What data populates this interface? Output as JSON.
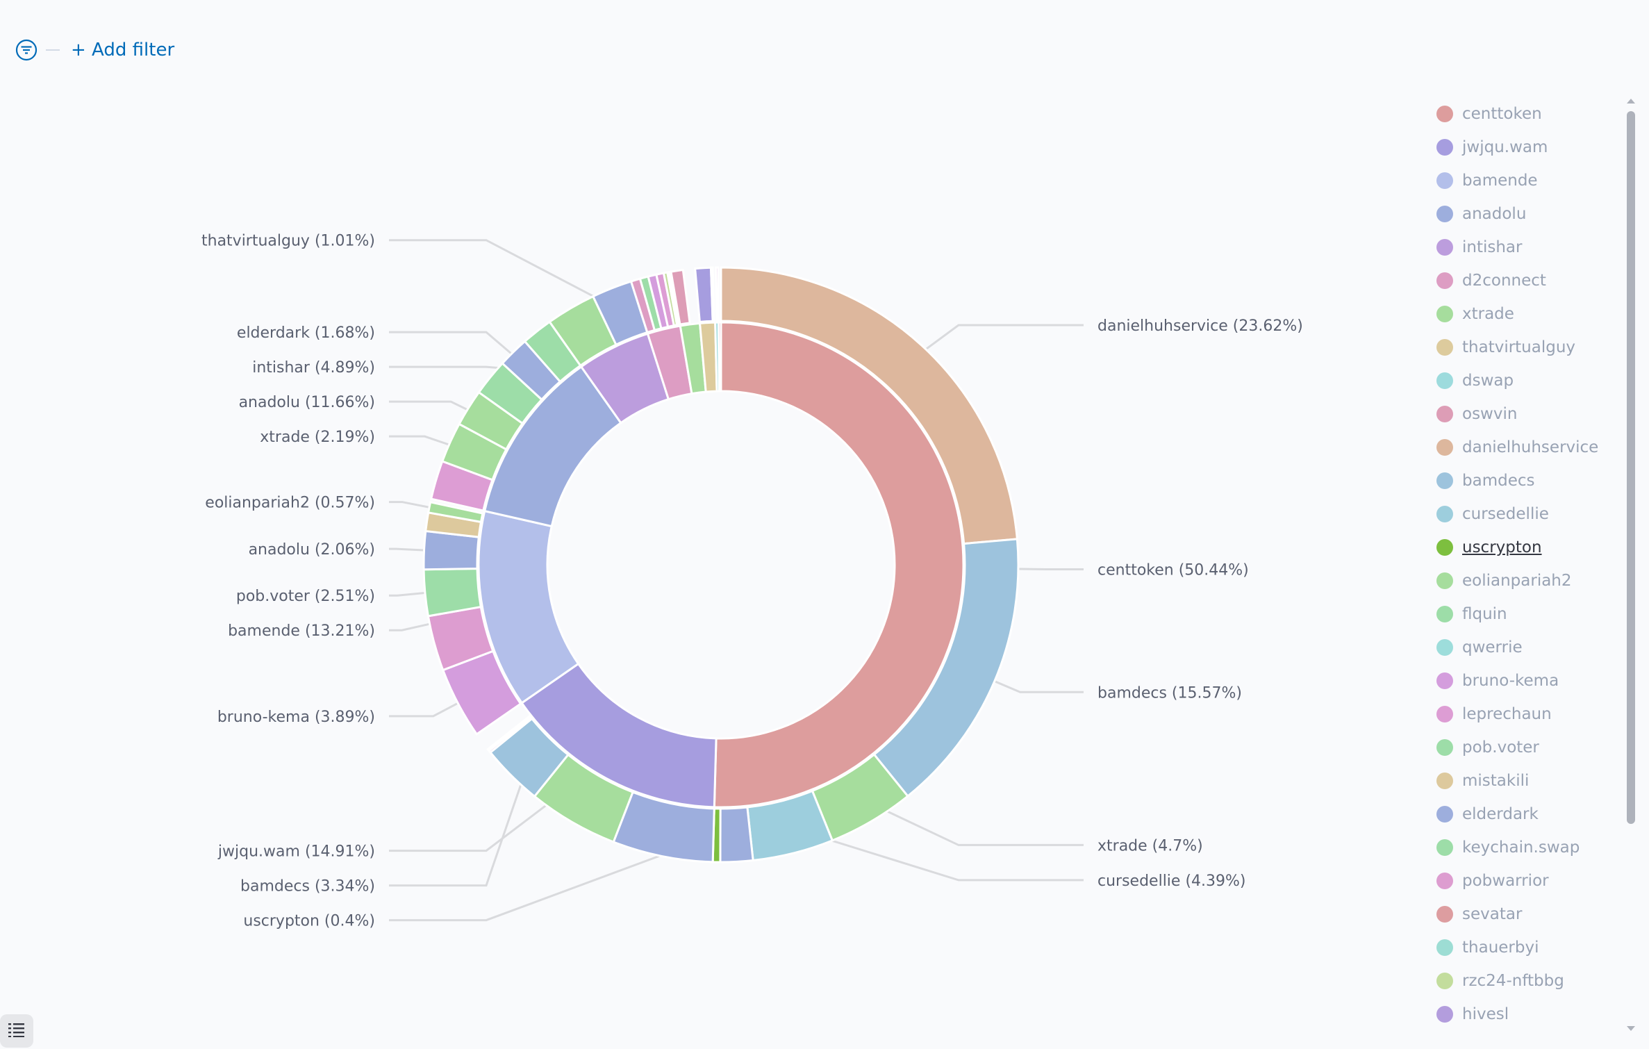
{
  "filter_bar": {
    "icon": "filter-icon",
    "add_filter_label": "+ Add filter"
  },
  "legend_toggle": {
    "icon": "list-icon"
  },
  "legend": {
    "items": [
      {
        "label": "centtoken",
        "color": "#dd9d9d"
      },
      {
        "label": "jwjqu.wam",
        "color": "#a69ddf"
      },
      {
        "label": "bamende",
        "color": "#b3bfea"
      },
      {
        "label": "anadolu",
        "color": "#9daedd"
      },
      {
        "label": "intishar",
        "color": "#bc9ddd"
      },
      {
        "label": "d2connect",
        "color": "#dd9dc3"
      },
      {
        "label": "xtrade",
        "color": "#a6dd9d"
      },
      {
        "label": "thatvirtualguy",
        "color": "#ddcb9d"
      },
      {
        "label": "dswap",
        "color": "#9ddbdd"
      },
      {
        "label": "oswvin",
        "color": "#dd9db6"
      },
      {
        "label": "danielhuhservice",
        "color": "#ddb79d"
      },
      {
        "label": "bamdecs",
        "color": "#9dc3dd"
      },
      {
        "label": "cursedellie",
        "color": "#9dcedd"
      },
      {
        "label": "uscrypton",
        "color": "#7dbf3f",
        "active": true
      },
      {
        "label": "eolianpariah2",
        "color": "#a6dd9d"
      },
      {
        "label": "flquin",
        "color": "#9ddda8"
      },
      {
        "label": "qwerrie",
        "color": "#9ddddb"
      },
      {
        "label": "bruno-kema",
        "color": "#d49ddd"
      },
      {
        "label": "leprechaun",
        "color": "#dd9dd4"
      },
      {
        "label": "pob.voter",
        "color": "#9ddda8"
      },
      {
        "label": "mistakili",
        "color": "#ddc99d"
      },
      {
        "label": "elderdark",
        "color": "#9daedd"
      },
      {
        "label": "keychain.swap",
        "color": "#9ddda8"
      },
      {
        "label": "pobwarrior",
        "color": "#dd9dd0"
      },
      {
        "label": "sevatar",
        "color": "#dd9da0"
      },
      {
        "label": "thauerbyi",
        "color": "#9dddd4"
      },
      {
        "label": "rzc24-nftbbg",
        "color": "#c3dd9d"
      },
      {
        "label": "hivesl",
        "color": "#b39ddd"
      }
    ]
  },
  "chart_data": {
    "type": "sunburst",
    "title": "",
    "legend_position": "right",
    "start_angle": "12 o'clock, clockwise",
    "inner_ring": [
      {
        "name": "centtoken",
        "value": 50.44,
        "color": "#dd9d9d",
        "label": "centtoken (50.44%)"
      },
      {
        "name": "jwjqu.wam",
        "value": 14.91,
        "color": "#a69ddf",
        "label": "jwjqu.wam (14.91%)"
      },
      {
        "name": "bamende",
        "value": 13.21,
        "color": "#b3bfea",
        "label": "bamende (13.21%)"
      },
      {
        "name": "anadolu",
        "value": 11.66,
        "color": "#9daedd",
        "label": "anadolu (11.66%)"
      },
      {
        "name": "intishar",
        "value": 4.89,
        "color": "#bc9ddd",
        "label": "intishar (4.89%)"
      },
      {
        "name": "d2connect",
        "value": 2.2,
        "color": "#dd9dc3"
      },
      {
        "name": "xtrade",
        "value": 1.3,
        "color": "#a6dd9d"
      },
      {
        "name": "thatvirtualguy",
        "value": 1.01,
        "color": "#ddcb9d",
        "label": "thatvirtualguy (1.01%)"
      },
      {
        "name": "dswap",
        "value": 0.22,
        "color": "#9ddbdd"
      },
      {
        "name": "oswvin",
        "value": 0.16,
        "color": "#dd9db6"
      }
    ],
    "outer_ring": [
      {
        "parent": "centtoken",
        "name": "danielhuhservice",
        "value": 23.62,
        "color": "#ddb79d",
        "label": "danielhuhservice (23.62%)"
      },
      {
        "parent": "centtoken",
        "name": "bamdecs",
        "value": 15.57,
        "color": "#9dc3dd",
        "label": "bamdecs (15.57%)"
      },
      {
        "parent": "centtoken",
        "name": "xtrade",
        "value": 4.7,
        "color": "#a6dd9d",
        "label": "xtrade (4.7%)"
      },
      {
        "parent": "centtoken",
        "name": "cursedellie",
        "value": 4.39,
        "color": "#9dcedd",
        "label": "cursedellie (4.39%)"
      },
      {
        "parent": "centtoken",
        "name": "anadolu",
        "value": 1.76,
        "color": "#9daedd"
      },
      {
        "parent": "centtoken",
        "name": "uscrypton",
        "value": 0.4,
        "color": "#7dbf3f",
        "label": "uscrypton (0.4%)"
      },
      {
        "parent": "jwjqu.wam",
        "name": "anadolu",
        "value": 5.45,
        "color": "#9daedd"
      },
      {
        "parent": "jwjqu.wam",
        "name": "xtrade",
        "value": 4.9,
        "color": "#a6dd9d"
      },
      {
        "parent": "jwjqu.wam",
        "name": "bamdecs",
        "value": 3.34,
        "color": "#9dc3dd",
        "label": "bamdecs (3.34%)"
      },
      {
        "parent": "jwjqu.wam",
        "name": "leprechaun",
        "value": 0.12,
        "color": "#dd9dd4"
      },
      {
        "parent": "jwjqu.wam",
        "name": "sevatar",
        "value": 0.1,
        "color": "#dd9da0"
      },
      {
        "parent": "jwjqu.wam",
        "name": "other",
        "value": 1.0,
        "color": "#f9fafc"
      },
      {
        "parent": "bamende",
        "name": "bruno-kema",
        "value": 3.89,
        "color": "#d49ddd",
        "label": "bruno-kema (3.89%)"
      },
      {
        "parent": "bamende",
        "name": "pobwarrior",
        "value": 3.0,
        "color": "#dd9dd0"
      },
      {
        "parent": "bamende",
        "name": "pob.voter",
        "value": 2.51,
        "color": "#9ddda8",
        "label": "pob.voter (2.51%)"
      },
      {
        "parent": "bamende",
        "name": "anadolu",
        "value": 2.06,
        "color": "#9daedd",
        "label": "anadolu (2.06%)"
      },
      {
        "parent": "bamende",
        "name": "mistakili",
        "value": 1.0,
        "color": "#ddc99d"
      },
      {
        "parent": "bamende",
        "name": "eolianpariah2",
        "value": 0.57,
        "color": "#a6dd9d",
        "label": "eolianpariah2 (0.57%)"
      },
      {
        "parent": "bamende",
        "name": "other",
        "value": 0.18,
        "color": "#f9fafc"
      },
      {
        "parent": "anadolu",
        "name": "leprechaun",
        "value": 2.1,
        "color": "#dd9dd4"
      },
      {
        "parent": "anadolu",
        "name": "xtrade",
        "value": 2.19,
        "color": "#a6dd9d",
        "label": "xtrade (2.19%)"
      },
      {
        "parent": "anadolu",
        "name": "pob.voter",
        "value": 2.0,
        "color": "#a6dd9d"
      },
      {
        "parent": "anadolu",
        "name": "flquin",
        "value": 2.0,
        "color": "#9ddda8"
      },
      {
        "parent": "anadolu",
        "name": "elderdark",
        "value": 1.68,
        "color": "#9daedd",
        "label": "elderdark (1.68%)"
      },
      {
        "parent": "anadolu",
        "name": "keychain.swap",
        "value": 1.69,
        "color": "#9ddda8"
      },
      {
        "parent": "intishar",
        "name": "xtrade",
        "value": 2.7,
        "color": "#a6dd9d"
      },
      {
        "parent": "intishar",
        "name": "anadolu",
        "value": 2.19,
        "color": "#9daedd"
      },
      {
        "parent": "d2connect",
        "name": "pobwarrior",
        "value": 0.5,
        "color": "#dd9dc3"
      },
      {
        "parent": "d2connect",
        "name": "flquin",
        "value": 0.45,
        "color": "#9ddda8"
      },
      {
        "parent": "d2connect",
        "name": "bruno-kema",
        "value": 0.45,
        "color": "#d49ddd"
      },
      {
        "parent": "d2connect",
        "name": "leprechaun",
        "value": 0.4,
        "color": "#dd9dd4"
      },
      {
        "parent": "d2connect",
        "name": "rzc24-nftbbg",
        "value": 0.2,
        "color": "#c3dd9d"
      },
      {
        "parent": "d2connect",
        "name": "hivesl",
        "value": 0.1,
        "color": "#b39ddd"
      },
      {
        "parent": "d2connect",
        "name": "flquin",
        "value": 0.1,
        "color": "#9ddda8"
      },
      {
        "parent": "xtrade",
        "name": "oswvin",
        "value": 0.65,
        "color": "#dd9db6"
      },
      {
        "parent": "xtrade",
        "name": "other",
        "value": 0.65,
        "color": "#f9fafc"
      },
      {
        "parent": "thatvirtualguy",
        "name": "jwjqu.wam",
        "value": 0.85,
        "color": "#a69ddf"
      },
      {
        "parent": "thatvirtualguy",
        "name": "anadolu",
        "value": 0.1,
        "color": "#9daedd"
      },
      {
        "parent": "thatvirtualguy",
        "name": "other",
        "value": 0.06,
        "color": "#f9fafc"
      },
      {
        "parent": "dswap",
        "name": "other",
        "value": 0.1,
        "color": "#f9fafc"
      },
      {
        "parent": "dswap",
        "name": "bruno-kema",
        "value": 0.12,
        "color": "#d49ddd"
      },
      {
        "parent": "oswvin",
        "name": "other",
        "value": 0.16,
        "color": "#f9fafc"
      }
    ]
  }
}
